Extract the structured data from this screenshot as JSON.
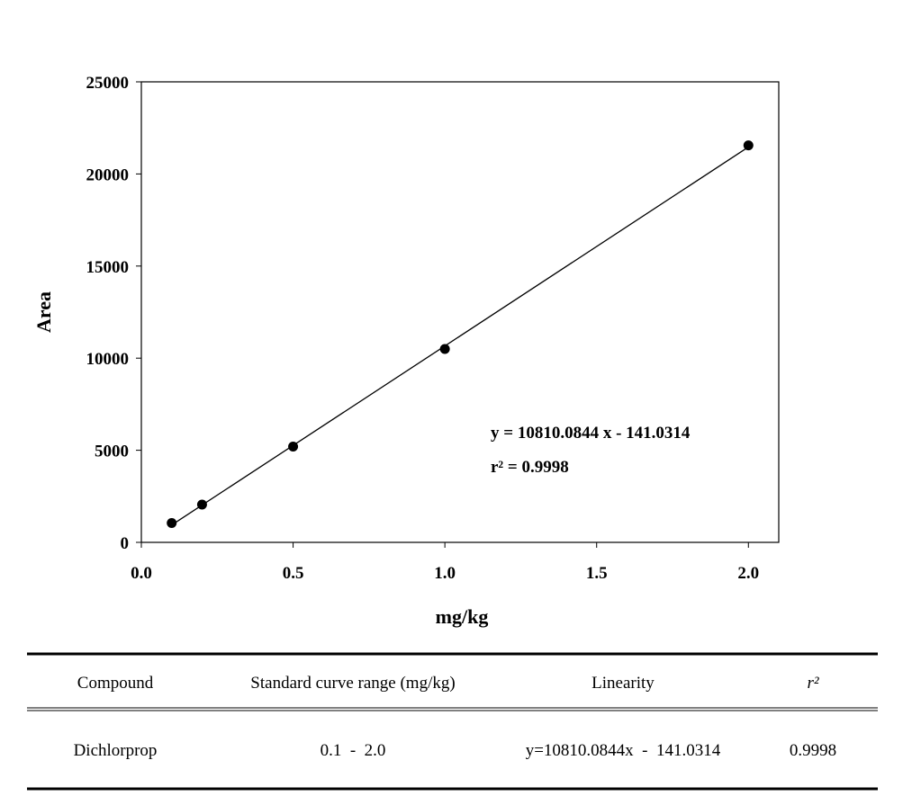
{
  "chart_data": {
    "type": "scatter",
    "x_label": "mg/kg",
    "y_label": "Area",
    "x": [
      0.1,
      0.2,
      0.5,
      1.0,
      2.0
    ],
    "values": [
      1050,
      2050,
      5200,
      10500,
      21550
    ],
    "color": "#000000",
    "xlim": [
      0,
      2.1
    ],
    "xticks": [
      {
        "value": 0,
        "label": "0.0"
      },
      0.5,
      {
        "value": 1,
        "label": "1.0"
      },
      1.5,
      {
        "value": 2,
        "label": "2.0"
      }
    ],
    "ylim": [
      0,
      25000
    ],
    "yticks": [
      0,
      5000,
      10000,
      15000,
      20000,
      25000
    ],
    "trendline": true,
    "annotations": [
      "y = 10810.0844 x - 141.0314",
      "r² = 0.9998"
    ]
  },
  "table": {
    "header": [
      "Compound",
      "Standard curve range (mg/kg)",
      "Linearity",
      "r²"
    ],
    "rows": [
      [
        "Dichlorprop",
        "0.1  -  2.0",
        "y=10810.0844x  -  141.0314",
        "0.9998"
      ]
    ]
  }
}
